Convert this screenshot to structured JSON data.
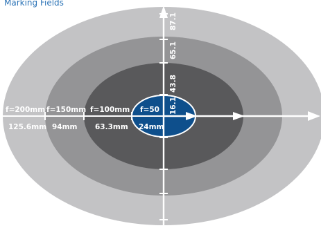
{
  "title": "Marking Fields",
  "colors": {
    "outer_ring": "#c3c3c5",
    "second_ring": "#949496",
    "third_ring": "#59595b",
    "center": "#0e4f8c",
    "arrows": "#ffffff"
  },
  "focal_labels": [
    "f=200mm",
    "f=150mm",
    "f=100mm",
    "f=50"
  ],
  "width_labels": [
    "125.6mm",
    "94mm",
    "63.3mm",
    "24mm"
  ],
  "height_labels": [
    "16.1",
    "43.8",
    "65.1",
    "87.1"
  ]
}
